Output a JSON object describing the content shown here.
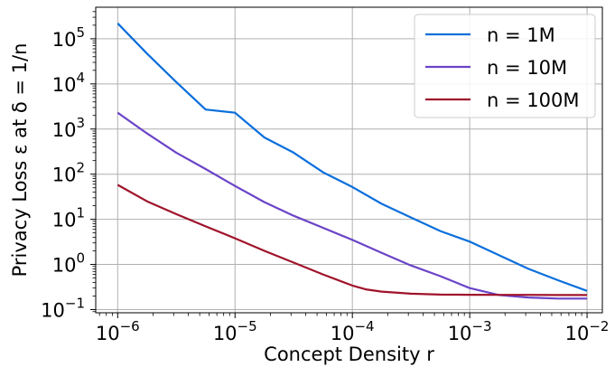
{
  "chart_data": {
    "type": "line",
    "title": "",
    "xlabel": "Concept Density r",
    "ylabel": "Privacy Loss ε at δ = 1/n",
    "xscale": "log",
    "yscale": "log",
    "xlim": [
      6.5e-07,
      0.0135
    ],
    "ylim": [
      0.085,
      500000
    ],
    "grid": true,
    "legend_position": "top-right",
    "x_ticks": [
      {
        "value": 1e-06,
        "base": "10",
        "exp": "−6"
      },
      {
        "value": 1e-05,
        "base": "10",
        "exp": "−5"
      },
      {
        "value": 0.0001,
        "base": "10",
        "exp": "−4"
      },
      {
        "value": 0.001,
        "base": "10",
        "exp": "−3"
      },
      {
        "value": 0.01,
        "base": "10",
        "exp": "−2"
      }
    ],
    "y_ticks": [
      {
        "value": 0.1,
        "base": "10",
        "exp": "−1"
      },
      {
        "value": 1,
        "base": "10",
        "exp": "0"
      },
      {
        "value": 10,
        "base": "10",
        "exp": "1"
      },
      {
        "value": 100,
        "base": "10",
        "exp": "2"
      },
      {
        "value": 1000,
        "base": "10",
        "exp": "3"
      },
      {
        "value": 10000,
        "base": "10",
        "exp": "4"
      },
      {
        "value": 100000,
        "base": "10",
        "exp": "5"
      }
    ],
    "series": [
      {
        "name": "n = 1M",
        "color": "#0b6fdc",
        "x": [
          1e-06,
          1.78e-06,
          3.16e-06,
          5.62e-06,
          1e-05,
          1.78e-05,
          3.16e-05,
          5.62e-05,
          0.0001,
          0.000178,
          0.000316,
          0.000562,
          0.001,
          0.00178,
          0.00316,
          0.00562,
          0.01
        ],
        "y": [
          220000,
          47000,
          11000,
          2700,
          2300,
          650,
          300,
          110,
          52,
          22,
          11,
          5.5,
          3.2,
          1.6,
          0.8,
          0.45,
          0.26
        ]
      },
      {
        "name": "n = 10M",
        "color": "#6b44c8",
        "x": [
          1e-06,
          1.78e-06,
          3.16e-06,
          5.62e-06,
          1e-05,
          1.78e-05,
          3.16e-05,
          5.62e-05,
          0.0001,
          0.000178,
          0.000316,
          0.000562,
          0.001,
          0.00178,
          0.00316,
          0.00562,
          0.01
        ],
        "y": [
          2300,
          800,
          300,
          130,
          55,
          24,
          12,
          6.5,
          3.5,
          1.8,
          0.95,
          0.55,
          0.3,
          0.21,
          0.185,
          0.175,
          0.175
        ]
      },
      {
        "name": "n = 100M",
        "color": "#a0132b",
        "x": [
          1e-06,
          1.78e-06,
          3.16e-06,
          5.62e-06,
          1e-05,
          1.78e-05,
          3.16e-05,
          5.62e-05,
          0.0001,
          0.00013,
          0.000178,
          0.000316,
          0.000562,
          0.001,
          0.00178,
          0.00316,
          0.00562,
          0.01
        ],
        "y": [
          58,
          25,
          13,
          7,
          3.8,
          2.0,
          1.1,
          0.6,
          0.34,
          0.28,
          0.25,
          0.225,
          0.215,
          0.213,
          0.212,
          0.212,
          0.21,
          0.21
        ]
      }
    ]
  }
}
